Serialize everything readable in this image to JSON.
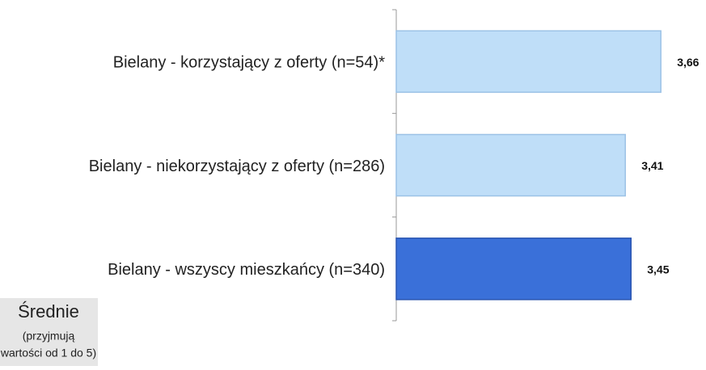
{
  "chart_data": {
    "type": "bar",
    "orientation": "horizontal",
    "categories": [
      "Bielany - korzystający z oferty (n=54)*",
      "Bielany - niekorzystający z oferty (n=286)",
      "Bielany - wszyscy mieszkańcy (n=340)"
    ],
    "values": [
      3.66,
      3.41,
      3.45
    ],
    "value_labels": [
      "3,66",
      "3,41",
      "3,45"
    ],
    "colors": [
      "#bfdef8",
      "#bfdef8",
      "#3a70d9"
    ],
    "xlim": [
      1.8,
      4.0
    ],
    "note": {
      "title": "Średnie",
      "line1": "(przyjmują",
      "line2": "wartości od 1 do 5)"
    }
  }
}
